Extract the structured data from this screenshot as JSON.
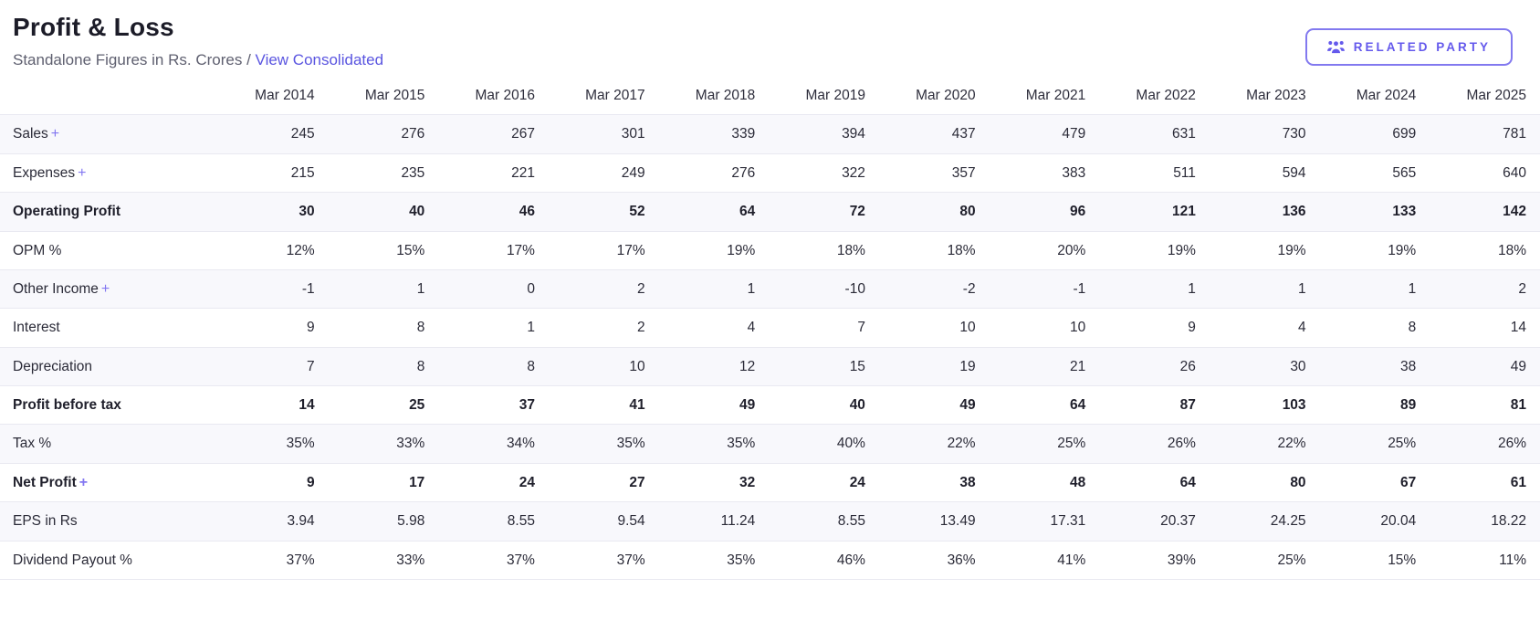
{
  "header": {
    "title": "Profit & Loss",
    "subtitle_prefix": "Standalone Figures in Rs. Crores /",
    "link_consolidated": "View Consolidated",
    "related_party_label": "RELATED PARTY"
  },
  "colors": {
    "accent_purple": "#6459ec",
    "button_border": "#8279ef",
    "stripe_background": "#f8f8fc",
    "row_border": "#e9e9f1",
    "title_text": "#1c1c28",
    "body_text": "#2b2b38",
    "subtitle_gray": "#5f6070"
  },
  "icons": {
    "related_party_button": "users-icon",
    "expand_rows": "plus-icon"
  },
  "chart_data": {
    "type": "table",
    "title": "Profit & Loss",
    "columns": [
      "Mar 2014",
      "Mar 2015",
      "Mar 2016",
      "Mar 2017",
      "Mar 2018",
      "Mar 2019",
      "Mar 2020",
      "Mar 2021",
      "Mar 2022",
      "Mar 2023",
      "Mar 2024",
      "Mar 2025"
    ],
    "rows": [
      {
        "label": "Sales",
        "expandable": true,
        "bold": false,
        "values": [
          "245",
          "276",
          "267",
          "301",
          "339",
          "394",
          "437",
          "479",
          "631",
          "730",
          "699",
          "781"
        ]
      },
      {
        "label": "Expenses",
        "expandable": true,
        "bold": false,
        "values": [
          "215",
          "235",
          "221",
          "249",
          "276",
          "322",
          "357",
          "383",
          "511",
          "594",
          "565",
          "640"
        ]
      },
      {
        "label": "Operating Profit",
        "expandable": false,
        "bold": true,
        "values": [
          "30",
          "40",
          "46",
          "52",
          "64",
          "72",
          "80",
          "96",
          "121",
          "136",
          "133",
          "142"
        ]
      },
      {
        "label": "OPM %",
        "expandable": false,
        "bold": false,
        "values": [
          "12%",
          "15%",
          "17%",
          "17%",
          "19%",
          "18%",
          "18%",
          "20%",
          "19%",
          "19%",
          "19%",
          "18%"
        ]
      },
      {
        "label": "Other Income",
        "expandable": true,
        "bold": false,
        "values": [
          "-1",
          "1",
          "0",
          "2",
          "1",
          "-10",
          "-2",
          "-1",
          "1",
          "1",
          "1",
          "2"
        ]
      },
      {
        "label": "Interest",
        "expandable": false,
        "bold": false,
        "values": [
          "9",
          "8",
          "1",
          "2",
          "4",
          "7",
          "10",
          "10",
          "9",
          "4",
          "8",
          "14"
        ]
      },
      {
        "label": "Depreciation",
        "expandable": false,
        "bold": false,
        "values": [
          "7",
          "8",
          "8",
          "10",
          "12",
          "15",
          "19",
          "21",
          "26",
          "30",
          "38",
          "49"
        ]
      },
      {
        "label": "Profit before tax",
        "expandable": false,
        "bold": true,
        "values": [
          "14",
          "25",
          "37",
          "41",
          "49",
          "40",
          "49",
          "64",
          "87",
          "103",
          "89",
          "81"
        ]
      },
      {
        "label": "Tax %",
        "expandable": false,
        "bold": false,
        "values": [
          "35%",
          "33%",
          "34%",
          "35%",
          "35%",
          "40%",
          "22%",
          "25%",
          "26%",
          "22%",
          "25%",
          "26%"
        ]
      },
      {
        "label": "Net Profit",
        "expandable": true,
        "bold": true,
        "values": [
          "9",
          "17",
          "24",
          "27",
          "32",
          "24",
          "38",
          "48",
          "64",
          "80",
          "67",
          "61"
        ]
      },
      {
        "label": "EPS in Rs",
        "expandable": false,
        "bold": false,
        "values": [
          "3.94",
          "5.98",
          "8.55",
          "9.54",
          "11.24",
          "8.55",
          "13.49",
          "17.31",
          "20.37",
          "24.25",
          "20.04",
          "18.22"
        ]
      },
      {
        "label": "Dividend Payout %",
        "expandable": false,
        "bold": false,
        "values": [
          "37%",
          "33%",
          "37%",
          "37%",
          "35%",
          "46%",
          "36%",
          "41%",
          "39%",
          "25%",
          "15%",
          "11%"
        ]
      }
    ]
  }
}
